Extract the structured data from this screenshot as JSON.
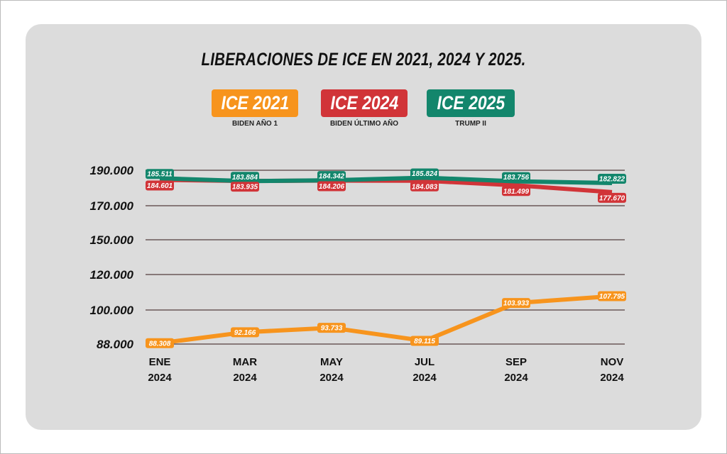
{
  "chart_data": {
    "type": "line",
    "title": "LIBERACIONES DE ICE EN 2021, 2024 Y 2025.",
    "categories": [
      [
        "ENE",
        "2024"
      ],
      [
        "MAR",
        "2024"
      ],
      [
        "MAY",
        "2024"
      ],
      [
        "JUL",
        "2024"
      ],
      [
        "SEP",
        "2024"
      ],
      [
        "NOV",
        "2024"
      ]
    ],
    "y_ticks": [
      "88.000",
      "100.000",
      "120.000",
      "150.000",
      "170.000",
      "190.000"
    ],
    "y_tick_values": [
      88000,
      100000,
      120000,
      150000,
      170000,
      190000
    ],
    "grid": true,
    "legend_position": "top-center",
    "series": [
      {
        "name": "ICE 2021",
        "subtitle": "BIDEN AÑO 1",
        "color": "#f7941d",
        "values": [
          88308,
          92166,
          93733,
          89115,
          103933,
          107795
        ],
        "labels": [
          "88.308",
          "92.166",
          "93.733",
          "89.115",
          "103.933",
          "107.795"
        ]
      },
      {
        "name": "ICE 2024",
        "subtitle": "BIDEN ÚLTIMO AÑO",
        "color": "#d13438",
        "values": [
          184601,
          183935,
          184206,
          184083,
          181499,
          177670
        ],
        "labels": [
          "184.601",
          "183.935",
          "184.206",
          "184.083",
          "181.499",
          "177.670"
        ]
      },
      {
        "name": "ICE 2025",
        "subtitle": "TRUMP II",
        "color": "#13866c",
        "values": [
          185511,
          183884,
          184342,
          185824,
          183756,
          182822
        ],
        "labels": [
          "185.511",
          "183.884",
          "184.342",
          "185.824",
          "183.756",
          "182.822"
        ]
      }
    ]
  }
}
